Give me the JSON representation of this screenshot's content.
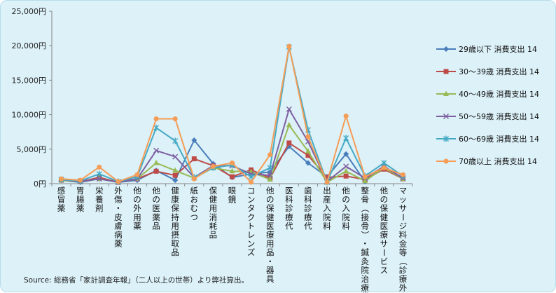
{
  "chart_data": {
    "type": "line",
    "y_unit_suffix": "円",
    "ylim": [
      0,
      25000
    ],
    "yticks": [
      "0円",
      "5,000円",
      "10,000円",
      "15,000円",
      "20,000円",
      "25,000円"
    ],
    "grid": false,
    "legend_position": "right",
    "categories": [
      "感冒薬",
      "胃腸薬",
      "栄養剤",
      "外傷・皮膚病薬",
      "他の外用薬",
      "他の医薬品",
      "健康保持用摂取品",
      "紙おむつ",
      "保健用消耗品",
      "眼鏡",
      "コンタクトレンズ",
      "他の保健医療用品・器具",
      "医科診療代",
      "歯科診療代",
      "出産入院料",
      "他の入院料",
      "整骨（接骨）・鍼灸院治療代",
      "他の保健医療サービス",
      "マッサージ料金等（診療外）"
    ],
    "series": [
      {
        "name": "29歳以下 消費支出 14",
        "color": "#4a7ebb",
        "marker": "diamond",
        "values": [
          500,
          200,
          700,
          200,
          500,
          1900,
          500,
          6300,
          2900,
          900,
          1400,
          1700,
          5400,
          3000,
          1000,
          4300,
          300,
          2500,
          800
        ]
      },
      {
        "name": "30～39歳  消費支出 14",
        "color": "#be4b48",
        "marker": "square",
        "values": [
          500,
          300,
          900,
          200,
          700,
          1800,
          1200,
          3600,
          2600,
          1000,
          2000,
          800,
          5900,
          4100,
          900,
          1100,
          600,
          2100,
          700
        ]
      },
      {
        "name": "40～49歳  消費支出 14",
        "color": "#98b954",
        "marker": "triangle",
        "values": [
          500,
          300,
          700,
          200,
          700,
          3000,
          1900,
          800,
          2300,
          1800,
          1700,
          600,
          8500,
          4700,
          200,
          1800,
          400,
          2300,
          700
        ]
      },
      {
        "name": "50～59歳  消費支出 14",
        "color": "#7d60a0",
        "marker": "x",
        "values": [
          600,
          300,
          700,
          200,
          700,
          4800,
          3900,
          900,
          2600,
          2600,
          1400,
          1200,
          10800,
          6100,
          300,
          2500,
          800,
          2500,
          800
        ]
      },
      {
        "name": "60～69歳  消費支出 14",
        "color": "#46aac4",
        "marker": "asterisk",
        "values": [
          600,
          400,
          1400,
          300,
          1000,
          8100,
          6200,
          900,
          2300,
          2700,
          1000,
          2300,
          19800,
          7800,
          200,
          6600,
          1100,
          3000,
          1100
        ]
      },
      {
        "name": "70歳以上 消費支出 14",
        "color": "#f59d56",
        "marker": "circle",
        "values": [
          700,
          500,
          2400,
          300,
          1300,
          9400,
          9400,
          700,
          2500,
          3000,
          200,
          4200,
          19900,
          6800,
          200,
          9800,
          1000,
          2300,
          1300
        ]
      }
    ]
  },
  "source_note": "Source: 総務省「家計調査年報」（二人以上の世帯）より弊社算出。"
}
